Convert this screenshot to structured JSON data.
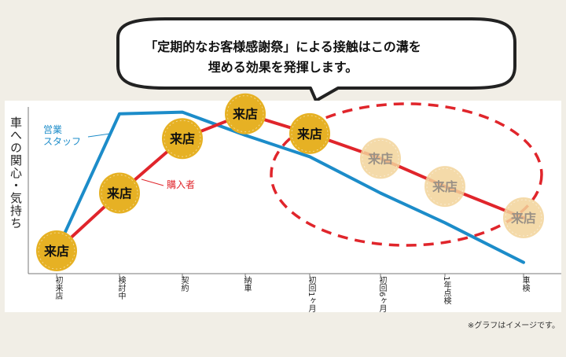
{
  "callout": {
    "line1": "「定期的なお客様感謝祭」による接触はこの溝を",
    "line2": "埋める効果を発揮します。"
  },
  "footnote": "※グラフはイメージです。",
  "colors": {
    "staff": "#1c8cc9",
    "buyer": "#e0252b",
    "badge": "#e6b124",
    "badge_faded": "#f2d49a",
    "dashed": "#e0252b"
  },
  "chart_data": {
    "type": "line",
    "ylabel": "車への関心・気持ち",
    "xlabel": "",
    "categories": [
      "初来店",
      "検討中",
      "契約",
      "納車",
      "初回1ヶ月",
      "初回6ヶ月",
      "1年点検",
      "車検"
    ],
    "ylim": [
      0,
      100
    ],
    "series": [
      {
        "name": "営業スタッフ",
        "values": [
          10,
          93,
          94,
          80,
          67,
          45,
          27,
          3
        ]
      },
      {
        "name": "購入者",
        "values": [
          10,
          45,
          78,
          93,
          81,
          66,
          49,
          30
        ]
      }
    ],
    "markers": [
      {
        "label": "来店",
        "index": 0,
        "series": 1,
        "faded": false
      },
      {
        "label": "来店",
        "index": 1,
        "series": 1,
        "faded": false
      },
      {
        "label": "来店",
        "index": 2,
        "series": 1,
        "faded": false
      },
      {
        "label": "来店",
        "index": 3,
        "series": 1,
        "faded": false
      },
      {
        "label": "来店",
        "index": 4,
        "series": 1,
        "faded": false
      },
      {
        "label": "来店",
        "index": 5,
        "series": 1,
        "faded": true
      },
      {
        "label": "来店",
        "index": 6,
        "series": 1,
        "faded": true
      },
      {
        "label": "来店",
        "index": 7,
        "series": 1,
        "faded": true
      }
    ],
    "grid": false,
    "legend": "inline"
  }
}
